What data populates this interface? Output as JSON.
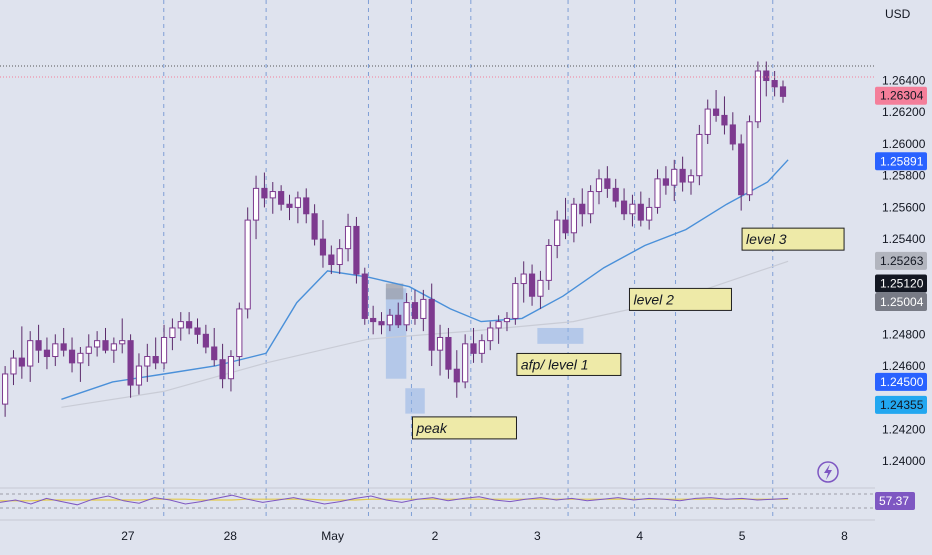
{
  "currency_label": "USD",
  "colors": {
    "background": "#dfe3ee",
    "candle_body": "#7d3a8f",
    "candle_wick": "#5b2a6b",
    "ema_fast": "#4a90d9",
    "ema_slow": "#c9ccd6",
    "note_fill": "#eeeaa8",
    "note_border": "#1e1e1e",
    "zone_fill": "#8fb2e6",
    "grid_vertical": "#7f9fd6",
    "rsi_line": "#7e57c2",
    "rsi_signal": "#e3c94a"
  },
  "chart_data": {
    "type": "candlestick",
    "y_axis_ticks": [
      "1.26400",
      "1.26200",
      "1.26000",
      "1.25800",
      "1.25600",
      "1.25400",
      "1.25000",
      "1.24800",
      "1.24600",
      "1.24200",
      "1.24000"
    ],
    "x_axis_ticks": [
      "27",
      "28",
      "May",
      "2",
      "3",
      "4",
      "5",
      "8"
    ],
    "ylim": [
      1.2385,
      1.2675
    ],
    "price_badges": [
      {
        "value": "1.26304",
        "bg": "#f47f9a",
        "fg": "#131722"
      },
      {
        "value": "1.25891",
        "bg": "#2962ff",
        "fg": "#ffffff"
      },
      {
        "value": "1.25263",
        "bg": "#b2b5be",
        "fg": "#131722"
      },
      {
        "value": "1.25120",
        "bg": "#131722",
        "fg": "#ffffff"
      },
      {
        "value": "1.25004",
        "bg": "#787b86",
        "fg": "#ffffff"
      },
      {
        "value": "1.24500",
        "bg": "#2962ff",
        "fg": "#ffffff"
      },
      {
        "value": "1.24355",
        "bg": "#22a7f0",
        "fg": "#131722"
      }
    ],
    "annotations": [
      {
        "text": "level 3",
        "price": 1.254,
        "day": 6.65
      },
      {
        "text": "level 2",
        "price": 1.2502,
        "day": 5.55
      },
      {
        "text": "afp/ level 1",
        "price": 1.2461,
        "day": 4.45
      },
      {
        "text": "peak",
        "price": 1.2421,
        "day": 3.43
      }
    ],
    "zones": [
      {
        "day_start": 3.17,
        "day_end": 3.37,
        "price_low": 1.2452,
        "price_high": 1.2509
      },
      {
        "day_start": 3.36,
        "day_end": 3.55,
        "price_low": 1.243,
        "price_high": 1.2446
      },
      {
        "day_start": 4.65,
        "day_end": 5.1,
        "price_low": 1.2474,
        "price_high": 1.2484
      }
    ],
    "session_lines_day": [
      1.0,
      2.0,
      3.0,
      3.42,
      4.0,
      4.95,
      5.6,
      6.0,
      6.95
    ],
    "candles": [
      [
        1.2436,
        1.246,
        1.2428,
        1.2455
      ],
      [
        1.2455,
        1.247,
        1.2448,
        1.2465
      ],
      [
        1.2465,
        1.2485,
        1.2452,
        1.246
      ],
      [
        1.246,
        1.2482,
        1.245,
        1.2476
      ],
      [
        1.2476,
        1.2486,
        1.2462,
        1.247
      ],
      [
        1.247,
        1.2478,
        1.2458,
        1.2466
      ],
      [
        1.2466,
        1.248,
        1.246,
        1.2474
      ],
      [
        1.2474,
        1.2484,
        1.2466,
        1.247
      ],
      [
        1.247,
        1.2478,
        1.2456,
        1.2462
      ],
      [
        1.2462,
        1.2472,
        1.245,
        1.2468
      ],
      [
        1.2468,
        1.248,
        1.246,
        1.2472
      ],
      [
        1.2472,
        1.2482,
        1.2466,
        1.2476
      ],
      [
        1.2476,
        1.2484,
        1.2468,
        1.247
      ],
      [
        1.247,
        1.2478,
        1.2462,
        1.2474
      ],
      [
        1.2474,
        1.249,
        1.2468,
        1.2476
      ],
      [
        1.2476,
        1.248,
        1.244,
        1.2448
      ],
      [
        1.2448,
        1.2468,
        1.2442,
        1.246
      ],
      [
        1.246,
        1.2474,
        1.245,
        1.2466
      ],
      [
        1.2466,
        1.2478,
        1.2458,
        1.2462
      ],
      [
        1.2462,
        1.2486,
        1.2458,
        1.2478
      ],
      [
        1.2478,
        1.249,
        1.247,
        1.2484
      ],
      [
        1.2484,
        1.2494,
        1.2476,
        1.2488
      ],
      [
        1.2488,
        1.2494,
        1.248,
        1.2484
      ],
      [
        1.2484,
        1.249,
        1.2474,
        1.248
      ],
      [
        1.248,
        1.2486,
        1.2468,
        1.2472
      ],
      [
        1.2472,
        1.2484,
        1.246,
        1.2464
      ],
      [
        1.2464,
        1.2474,
        1.2446,
        1.2452
      ],
      [
        1.2452,
        1.247,
        1.2444,
        1.2466
      ],
      [
        1.2466,
        1.25,
        1.246,
        1.2496
      ],
      [
        1.2496,
        1.256,
        1.249,
        1.2552
      ],
      [
        1.2552,
        1.258,
        1.254,
        1.2572
      ],
      [
        1.2572,
        1.2582,
        1.256,
        1.2566
      ],
      [
        1.2566,
        1.2576,
        1.2556,
        1.257
      ],
      [
        1.257,
        1.2574,
        1.2558,
        1.2562
      ],
      [
        1.2562,
        1.2568,
        1.2552,
        1.256
      ],
      [
        1.256,
        1.257,
        1.255,
        1.2566
      ],
      [
        1.2566,
        1.2572,
        1.255,
        1.2556
      ],
      [
        1.2556,
        1.2562,
        1.2536,
        1.254
      ],
      [
        1.254,
        1.2552,
        1.2522,
        1.253
      ],
      [
        1.253,
        1.2536,
        1.2518,
        1.2524
      ],
      [
        1.2524,
        1.254,
        1.2518,
        1.2534
      ],
      [
        1.2534,
        1.2556,
        1.2526,
        1.2548
      ],
      [
        1.2548,
        1.2554,
        1.2512,
        1.2518
      ],
      [
        1.2518,
        1.2522,
        1.2486,
        1.249
      ],
      [
        1.249,
        1.2498,
        1.248,
        1.2488
      ],
      [
        1.2488,
        1.2494,
        1.248,
        1.2486
      ],
      [
        1.2486,
        1.2496,
        1.2482,
        1.2492
      ],
      [
        1.2492,
        1.25,
        1.2484,
        1.2486
      ],
      [
        1.2486,
        1.2506,
        1.2482,
        1.25
      ],
      [
        1.25,
        1.2508,
        1.2486,
        1.249
      ],
      [
        1.249,
        1.2508,
        1.2482,
        1.2502
      ],
      [
        1.2502,
        1.2512,
        1.246,
        1.247
      ],
      [
        1.247,
        1.2486,
        1.2454,
        1.2478
      ],
      [
        1.2478,
        1.2484,
        1.2452,
        1.2458
      ],
      [
        1.2458,
        1.247,
        1.244,
        1.245
      ],
      [
        1.245,
        1.248,
        1.2446,
        1.2474
      ],
      [
        1.2474,
        1.2484,
        1.2462,
        1.2468
      ],
      [
        1.2468,
        1.248,
        1.2462,
        1.2476
      ],
      [
        1.2476,
        1.2488,
        1.247,
        1.2484
      ],
      [
        1.2484,
        1.2492,
        1.2474,
        1.2488
      ],
      [
        1.2488,
        1.2494,
        1.2482,
        1.249
      ],
      [
        1.249,
        1.2516,
        1.2486,
        1.2512
      ],
      [
        1.2512,
        1.2526,
        1.25,
        1.2518
      ],
      [
        1.2518,
        1.2524,
        1.2498,
        1.2504
      ],
      [
        1.2504,
        1.252,
        1.2496,
        1.2514
      ],
      [
        1.2514,
        1.254,
        1.2508,
        1.2536
      ],
      [
        1.2536,
        1.2558,
        1.2528,
        1.2552
      ],
      [
        1.2552,
        1.2566,
        1.254,
        1.2544
      ],
      [
        1.2544,
        1.2566,
        1.2538,
        1.2562
      ],
      [
        1.2562,
        1.2572,
        1.2548,
        1.2556
      ],
      [
        1.2556,
        1.2574,
        1.255,
        1.257
      ],
      [
        1.257,
        1.2584,
        1.2562,
        1.2578
      ],
      [
        1.2578,
        1.2586,
        1.2566,
        1.2572
      ],
      [
        1.2572,
        1.2578,
        1.256,
        1.2564
      ],
      [
        1.2564,
        1.2572,
        1.2552,
        1.2556
      ],
      [
        1.2556,
        1.2568,
        1.2548,
        1.2562
      ],
      [
        1.2562,
        1.257,
        1.2548,
        1.2552
      ],
      [
        1.2552,
        1.2566,
        1.2546,
        1.256
      ],
      [
        1.256,
        1.2584,
        1.2556,
        1.2578
      ],
      [
        1.2578,
        1.2586,
        1.2568,
        1.2574
      ],
      [
        1.2574,
        1.259,
        1.2564,
        1.2584
      ],
      [
        1.2584,
        1.2592,
        1.257,
        1.2576
      ],
      [
        1.2576,
        1.2584,
        1.2568,
        1.258
      ],
      [
        1.258,
        1.2612,
        1.2574,
        1.2606
      ],
      [
        1.2606,
        1.2628,
        1.26,
        1.2622
      ],
      [
        1.2622,
        1.2634,
        1.2614,
        1.2618
      ],
      [
        1.2618,
        1.263,
        1.2606,
        1.2612
      ],
      [
        1.2612,
        1.262,
        1.2596,
        1.26
      ],
      [
        1.26,
        1.2606,
        1.2558,
        1.2568
      ],
      [
        1.2568,
        1.2618,
        1.2564,
        1.2614
      ],
      [
        1.2614,
        1.2652,
        1.261,
        1.2646
      ],
      [
        1.2646,
        1.2652,
        1.263,
        1.264
      ],
      [
        1.264,
        1.2646,
        1.263,
        1.2636
      ],
      [
        1.2636,
        1.264,
        1.2626,
        1.263
      ]
    ],
    "ema_fast": [
      [
        0.0,
        1.2439
      ],
      [
        0.5,
        1.245
      ],
      [
        1.0,
        1.2455
      ],
      [
        1.5,
        1.246
      ],
      [
        2.0,
        1.2468
      ],
      [
        2.3,
        1.25
      ],
      [
        2.6,
        1.252
      ],
      [
        3.0,
        1.2516
      ],
      [
        3.4,
        1.251
      ],
      [
        3.8,
        1.2496
      ],
      [
        4.1,
        1.2488
      ],
      [
        4.5,
        1.249
      ],
      [
        4.9,
        1.2504
      ],
      [
        5.3,
        1.2522
      ],
      [
        5.7,
        1.2536
      ],
      [
        6.1,
        1.2546
      ],
      [
        6.5,
        1.2562
      ],
      [
        6.9,
        1.2576
      ],
      [
        7.1,
        1.259
      ]
    ],
    "ema_slow": [
      [
        0.0,
        1.2434
      ],
      [
        1.0,
        1.2444
      ],
      [
        2.0,
        1.2462
      ],
      [
        3.0,
        1.2477
      ],
      [
        4.0,
        1.2482
      ],
      [
        5.0,
        1.2488
      ],
      [
        6.0,
        1.2502
      ],
      [
        7.1,
        1.2526
      ]
    ],
    "rsi": {
      "value": "57.37",
      "points": [
        52,
        55,
        50,
        57,
        53,
        49,
        56,
        60,
        54,
        51,
        58,
        55,
        50,
        53,
        57,
        61,
        56,
        52,
        55,
        58,
        54,
        50,
        53,
        57,
        60,
        55,
        52,
        56,
        58,
        54,
        57,
        59,
        55,
        53,
        56,
        58,
        55,
        57,
        54,
        56,
        58,
        55,
        57,
        56,
        54,
        57,
        58,
        56,
        57,
        55,
        56,
        57
      ],
      "signal": [
        54,
        54,
        54,
        55,
        55,
        55,
        55,
        55,
        55,
        55,
        56,
        56,
        56,
        55,
        55,
        55,
        56,
        56,
        56,
        56,
        56,
        55,
        55,
        55,
        56,
        56,
        56,
        56,
        56,
        56,
        56,
        56,
        56,
        56,
        56,
        56,
        56,
        56,
        56,
        56,
        56,
        56,
        56,
        56,
        56,
        56,
        56,
        56,
        56,
        56,
        56,
        56
      ]
    }
  }
}
